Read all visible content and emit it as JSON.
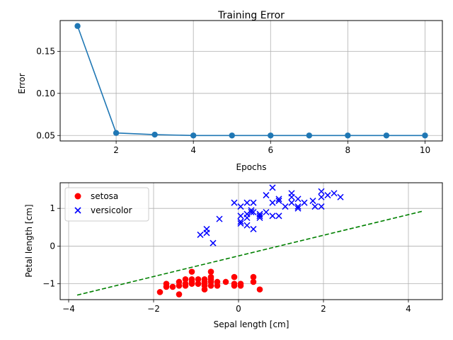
{
  "chart_data": [
    {
      "type": "line",
      "title": "Training Error",
      "xlabel": "Epochs",
      "ylabel": "Error",
      "xlim": [
        0.55,
        10.45
      ],
      "ylim": [
        0.0435,
        0.1865
      ],
      "xticks": [
        2,
        4,
        6,
        8,
        10
      ],
      "yticks": [
        0.05,
        0.1,
        0.15
      ],
      "ytick_labels": [
        "0.05",
        "0.10",
        "0.15"
      ],
      "grid": true,
      "series": [
        {
          "color": "#1f77b4",
          "marker": "circle",
          "x": [
            1,
            2,
            3,
            4,
            5,
            6,
            7,
            8,
            9,
            10
          ],
          "y": [
            0.18,
            0.053,
            0.051,
            0.05,
            0.05,
            0.05,
            0.05,
            0.05,
            0.05,
            0.05
          ]
        }
      ]
    },
    {
      "type": "scatter",
      "title": "",
      "xlabel": "Sepal length [cm]",
      "ylabel": "Petal length [cm]",
      "xlim": [
        -4.2,
        4.8
      ],
      "ylim": [
        -1.42,
        1.68
      ],
      "xticks": [
        -4,
        -2,
        0,
        2,
        4
      ],
      "yticks": [
        -1,
        0,
        1
      ],
      "grid": true,
      "legend_position": "upper-left",
      "series": [
        {
          "name": "setosa",
          "color": "#ff0000",
          "marker": "circle",
          "points": [
            [
              -1.85,
              -1.22
            ],
            [
              -1.7,
              -1.0
            ],
            [
              -1.7,
              -1.08
            ],
            [
              -1.55,
              -1.08
            ],
            [
              -1.4,
              -1.28
            ],
            [
              -1.4,
              -0.95
            ],
            [
              -1.4,
              -1.05
            ],
            [
              -1.25,
              -0.88
            ],
            [
              -1.25,
              -1.05
            ],
            [
              -1.25,
              -1.0
            ],
            [
              -1.1,
              -0.68
            ],
            [
              -1.1,
              -0.88
            ],
            [
              -1.1,
              -1.0
            ],
            [
              -1.1,
              -0.95
            ],
            [
              -0.95,
              -1.0
            ],
            [
              -0.95,
              -0.88
            ],
            [
              -0.95,
              -1.0
            ],
            [
              -0.8,
              -0.88
            ],
            [
              -0.8,
              -1.0
            ],
            [
              -0.8,
              -1.15
            ],
            [
              -0.8,
              -1.05
            ],
            [
              -0.8,
              -0.95
            ],
            [
              -0.65,
              -0.68
            ],
            [
              -0.65,
              -0.82
            ],
            [
              -0.65,
              -0.95
            ],
            [
              -0.65,
              -1.05
            ],
            [
              -0.65,
              -0.88
            ],
            [
              -0.5,
              -0.95
            ],
            [
              -0.5,
              -1.05
            ],
            [
              -0.3,
              -0.95
            ],
            [
              -0.1,
              -0.82
            ],
            [
              -0.1,
              -1.0
            ],
            [
              -0.1,
              -1.05
            ],
            [
              0.05,
              -1.0
            ],
            [
              0.05,
              -1.05
            ],
            [
              0.35,
              -0.82
            ],
            [
              0.35,
              -0.95
            ],
            [
              0.5,
              -1.15
            ]
          ]
        },
        {
          "name": "versicolor",
          "color": "#0000ff",
          "marker": "x",
          "points": [
            [
              -0.9,
              0.3
            ],
            [
              -0.75,
              0.35
            ],
            [
              -0.75,
              0.45
            ],
            [
              -0.6,
              0.08
            ],
            [
              -0.45,
              0.72
            ],
            [
              -0.1,
              1.15
            ],
            [
              0.05,
              1.05
            ],
            [
              0.05,
              0.8
            ],
            [
              0.05,
              0.65
            ],
            [
              0.05,
              0.6
            ],
            [
              0.2,
              0.85
            ],
            [
              0.2,
              0.75
            ],
            [
              0.2,
              1.15
            ],
            [
              0.2,
              0.55
            ],
            [
              0.3,
              0.9
            ],
            [
              0.3,
              0.95
            ],
            [
              0.35,
              1.15
            ],
            [
              0.35,
              0.9
            ],
            [
              0.35,
              0.45
            ],
            [
              0.5,
              0.85
            ],
            [
              0.5,
              0.8
            ],
            [
              0.5,
              0.75
            ],
            [
              0.65,
              1.35
            ],
            [
              0.65,
              0.9
            ],
            [
              0.8,
              1.55
            ],
            [
              0.8,
              1.15
            ],
            [
              0.8,
              0.8
            ],
            [
              0.95,
              1.25
            ],
            [
              0.95,
              1.2
            ],
            [
              0.95,
              0.8
            ],
            [
              1.1,
              1.05
            ],
            [
              1.25,
              1.4
            ],
            [
              1.25,
              1.3
            ],
            [
              1.25,
              1.15
            ],
            [
              1.4,
              1.25
            ],
            [
              1.4,
              1.05
            ],
            [
              1.4,
              1.0
            ],
            [
              1.55,
              1.15
            ],
            [
              1.75,
              1.2
            ],
            [
              1.8,
              1.05
            ],
            [
              1.95,
              1.45
            ],
            [
              1.95,
              1.3
            ],
            [
              1.95,
              1.05
            ],
            [
              2.1,
              1.35
            ],
            [
              2.25,
              1.4
            ],
            [
              2.4,
              1.3
            ]
          ]
        },
        {
          "type": "line",
          "color": "#008000",
          "style": "dashed",
          "x": [
            -3.8,
            4.35
          ],
          "y": [
            -1.3,
            0.93
          ]
        }
      ]
    }
  ]
}
